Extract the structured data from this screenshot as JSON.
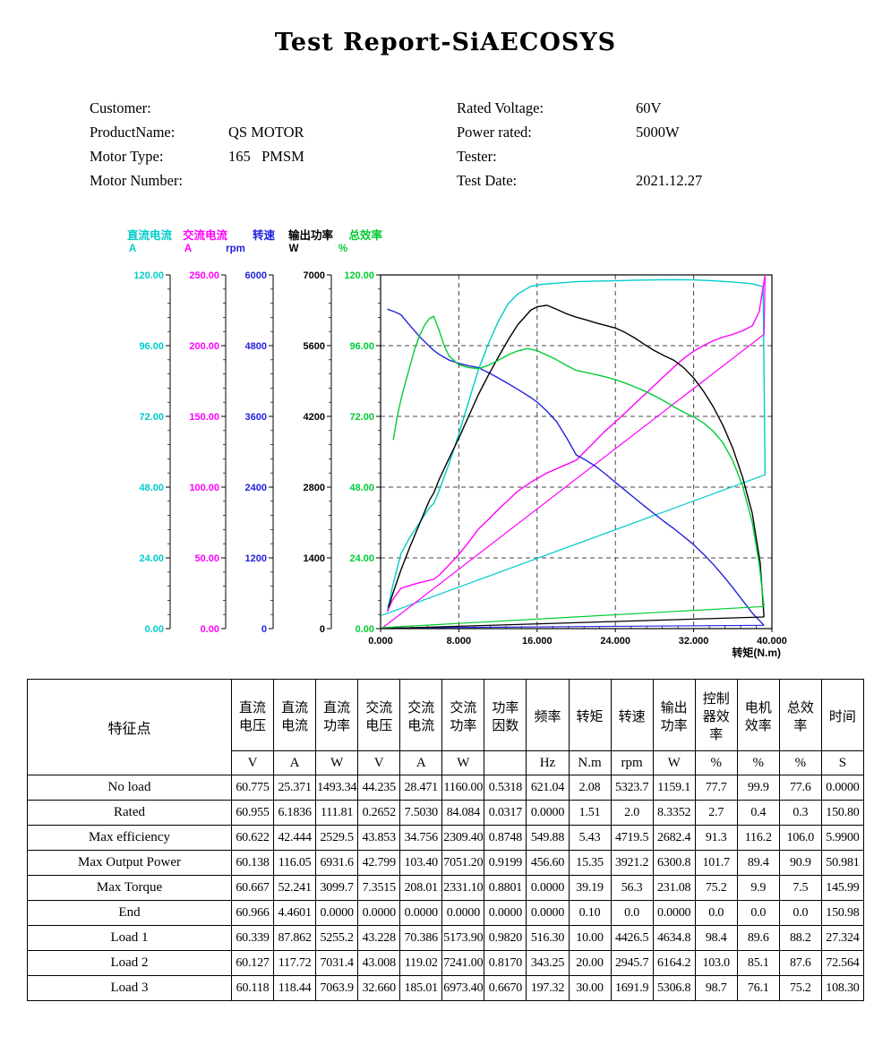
{
  "page": {
    "title": "Test Report-SiAECOSYS"
  },
  "info": {
    "rows": [
      {
        "l_label": "Customer:",
        "l_value": "",
        "r_label": "Rated Voltage:",
        "r_value": "60V"
      },
      {
        "l_label": "ProductName:",
        "l_value": "QS MOTOR",
        "r_label": "Power rated:",
        "r_value": "5000W"
      },
      {
        "l_label": "Motor Type:",
        "l_value": "165   PMSM",
        "r_label": "Tester:",
        "r_value": ""
      },
      {
        "l_label": "Motor Number:",
        "l_value": "",
        "r_label": "Test Date:",
        "r_value": "2021.12.27"
      }
    ]
  },
  "chart_data": {
    "type": "line",
    "title": "",
    "x_axis": {
      "label": "转矩(N.m)",
      "min": 0,
      "max": 40,
      "ticks": [
        "0.000",
        "8.000",
        "16.000",
        "24.000",
        "32.000",
        "40.000"
      ]
    },
    "y_axes": [
      {
        "id": "dc_current",
        "name": "直流电流",
        "unit": "A",
        "color": "#00cccc",
        "max": 120,
        "ticks": [
          "120.00",
          "96.00",
          "72.00",
          "48.00",
          "24.00",
          "0.00"
        ]
      },
      {
        "id": "ac_current",
        "name": "交流电流",
        "unit": "A",
        "color": "#ff00ff",
        "max": 250,
        "ticks": [
          "250.00",
          "200.00",
          "150.00",
          "100.00",
          "50.00",
          "0.00"
        ]
      },
      {
        "id": "speed",
        "name": "转速",
        "unit": "rpm",
        "color": "#2222dd",
        "max": 6000,
        "ticks": [
          "6000",
          "4800",
          "3600",
          "2400",
          "1200",
          "0"
        ]
      },
      {
        "id": "output_power",
        "name": "输出功率",
        "unit": "W",
        "color": "#000000",
        "max": 7000,
        "ticks": [
          "7000",
          "5600",
          "4200",
          "2800",
          "1400",
          "0"
        ]
      },
      {
        "id": "efficiency",
        "name": "总效率",
        "unit": "%",
        "color": "#00cc33",
        "max": 120,
        "ticks": [
          "120.00",
          "96.00",
          "72.00",
          "48.00",
          "24.00",
          "0.00"
        ]
      }
    ],
    "grid": true,
    "legend_position": "top-left",
    "series": [
      {
        "axis": "dc_current",
        "name": "直流电流",
        "color": "#00cccc",
        "points": [
          [
            0.7,
            6
          ],
          [
            1.2,
            14
          ],
          [
            2.08,
            25.4
          ],
          [
            3,
            31
          ],
          [
            4,
            36
          ],
          [
            5,
            41
          ],
          [
            5.43,
            42.4
          ],
          [
            6,
            47
          ],
          [
            7,
            56
          ],
          [
            8,
            66
          ],
          [
            9,
            77
          ],
          [
            10,
            87.9
          ],
          [
            11,
            96.5
          ],
          [
            12,
            104
          ],
          [
            13,
            110
          ],
          [
            14,
            113.5
          ],
          [
            15.35,
            116.1
          ],
          [
            16.5,
            116.8
          ],
          [
            18,
            117.2
          ],
          [
            20,
            117.7
          ],
          [
            22,
            117.9
          ],
          [
            24,
            118
          ],
          [
            26,
            118.2
          ],
          [
            28,
            118.3
          ],
          [
            30,
            118.4
          ],
          [
            32,
            118.3
          ],
          [
            34,
            118
          ],
          [
            36,
            117.6
          ],
          [
            38,
            117
          ],
          [
            39.1,
            116
          ],
          [
            39.3,
            52.2
          ]
        ],
        "return_points": [
          [
            39.3,
            52.2
          ],
          [
            0.1,
            4.46
          ]
        ]
      },
      {
        "axis": "ac_current",
        "name": "交流电流",
        "color": "#ff00ff",
        "points": [
          [
            0.7,
            12
          ],
          [
            1.2,
            20
          ],
          [
            2.08,
            28.5
          ],
          [
            3,
            30.5
          ],
          [
            4,
            32.5
          ],
          [
            5.43,
            34.8
          ],
          [
            6,
            38
          ],
          [
            7,
            45
          ],
          [
            8,
            52.5
          ],
          [
            9,
            61
          ],
          [
            10,
            70.4
          ],
          [
            11,
            77
          ],
          [
            12,
            84
          ],
          [
            13,
            90.5
          ],
          [
            14,
            97
          ],
          [
            15.35,
            103.4
          ],
          [
            16,
            106
          ],
          [
            17,
            110
          ],
          [
            18,
            113
          ],
          [
            19,
            116
          ],
          [
            20,
            119
          ],
          [
            21,
            126
          ],
          [
            22,
            133
          ],
          [
            23,
            140
          ],
          [
            24,
            146
          ],
          [
            25,
            152.5
          ],
          [
            26,
            159
          ],
          [
            27,
            165.5
          ],
          [
            28,
            172
          ],
          [
            29,
            178.5
          ],
          [
            30,
            185
          ],
          [
            31,
            191
          ],
          [
            32,
            196
          ],
          [
            33,
            200
          ],
          [
            34,
            203.5
          ],
          [
            35,
            206
          ],
          [
            36,
            208
          ],
          [
            37,
            210.5
          ],
          [
            38,
            214
          ],
          [
            38.7,
            224
          ],
          [
            39.3,
            250
          ]
        ],
        "return_points": [
          [
            39.3,
            250
          ],
          [
            39.19,
            208
          ],
          [
            0.1,
            0
          ]
        ]
      },
      {
        "axis": "speed",
        "name": "转速",
        "color": "#2222dd",
        "points": [
          [
            0.7,
            5420
          ],
          [
            1.5,
            5370
          ],
          [
            2.08,
            5324
          ],
          [
            3,
            5140
          ],
          [
            4,
            4950
          ],
          [
            5,
            4790
          ],
          [
            5.43,
            4719
          ],
          [
            6,
            4650
          ],
          [
            7,
            4555
          ],
          [
            8,
            4500
          ],
          [
            9,
            4460
          ],
          [
            10,
            4426
          ],
          [
            11,
            4345
          ],
          [
            12,
            4255
          ],
          [
            13,
            4160
          ],
          [
            14,
            4060
          ],
          [
            15.35,
            3921
          ],
          [
            16,
            3845
          ],
          [
            17,
            3690
          ],
          [
            18,
            3510
          ],
          [
            19,
            3240
          ],
          [
            20,
            2946
          ],
          [
            21,
            2855
          ],
          [
            22,
            2750
          ],
          [
            23,
            2620
          ],
          [
            24,
            2480
          ],
          [
            25,
            2345
          ],
          [
            26,
            2210
          ],
          [
            27,
            2075
          ],
          [
            28,
            1945
          ],
          [
            29,
            1815
          ],
          [
            30,
            1692
          ],
          [
            31,
            1560
          ],
          [
            32,
            1425
          ],
          [
            33,
            1265
          ],
          [
            34,
            1090
          ],
          [
            35,
            900
          ],
          [
            36,
            695
          ],
          [
            37,
            480
          ],
          [
            38,
            265
          ],
          [
            39.19,
            56
          ]
        ],
        "return_points": [
          [
            39.19,
            56
          ],
          [
            0.1,
            10
          ]
        ]
      },
      {
        "axis": "output_power",
        "name": "输出功率",
        "color": "#000000",
        "points": [
          [
            0.8,
            420
          ],
          [
            1.3,
            720
          ],
          [
            2.08,
            1159
          ],
          [
            3,
            1620
          ],
          [
            4,
            2080
          ],
          [
            5,
            2540
          ],
          [
            5.43,
            2682
          ],
          [
            6,
            2960
          ],
          [
            7,
            3370
          ],
          [
            8,
            3770
          ],
          [
            9,
            4200
          ],
          [
            10,
            4635
          ],
          [
            11,
            5010
          ],
          [
            12,
            5360
          ],
          [
            13,
            5700
          ],
          [
            14,
            6010
          ],
          [
            15.35,
            6301
          ],
          [
            16,
            6370
          ],
          [
            17,
            6400
          ],
          [
            18,
            6320
          ],
          [
            19,
            6230
          ],
          [
            20,
            6164
          ],
          [
            21,
            6110
          ],
          [
            22,
            6050
          ],
          [
            23,
            6000
          ],
          [
            24,
            5950
          ],
          [
            25,
            5860
          ],
          [
            26,
            5750
          ],
          [
            27,
            5620
          ],
          [
            28,
            5500
          ],
          [
            29,
            5400
          ],
          [
            30,
            5307
          ],
          [
            31,
            5160
          ],
          [
            32,
            4960
          ],
          [
            33,
            4700
          ],
          [
            34,
            4390
          ],
          [
            35,
            4020
          ],
          [
            36,
            3570
          ],
          [
            37,
            3000
          ],
          [
            38,
            2280
          ],
          [
            38.8,
            1300
          ],
          [
            39.19,
            231
          ]
        ],
        "return_points": [
          [
            39.19,
            231
          ],
          [
            0.1,
            0
          ]
        ]
      },
      {
        "axis": "efficiency",
        "name": "总效率",
        "color": "#00cc33",
        "points": [
          [
            1.3,
            64
          ],
          [
            1.7,
            72
          ],
          [
            2.08,
            77.6
          ],
          [
            2.5,
            83
          ],
          [
            3,
            89
          ],
          [
            3.5,
            95
          ],
          [
            4,
            99.5
          ],
          [
            4.5,
            103
          ],
          [
            5,
            105.2
          ],
          [
            5.43,
            106
          ],
          [
            6,
            101
          ],
          [
            6.5,
            96
          ],
          [
            7,
            92.5
          ],
          [
            8,
            89.5
          ],
          [
            9,
            88.6
          ],
          [
            10,
            88.2
          ],
          [
            11,
            89.3
          ],
          [
            12,
            91
          ],
          [
            13,
            92.8
          ],
          [
            14,
            94.2
          ],
          [
            15,
            95
          ],
          [
            16,
            94.3
          ],
          [
            17,
            92.8
          ],
          [
            18,
            91.2
          ],
          [
            19,
            89.3
          ],
          [
            20,
            87.6
          ],
          [
            21,
            86.9
          ],
          [
            22,
            86.2
          ],
          [
            23,
            85.4
          ],
          [
            24,
            84.5
          ],
          [
            25,
            83.3
          ],
          [
            26,
            82
          ],
          [
            27,
            80.6
          ],
          [
            28,
            79
          ],
          [
            29,
            77.2
          ],
          [
            30,
            75.2
          ],
          [
            31,
            73.4
          ],
          [
            32,
            71.8
          ],
          [
            33,
            69.8
          ],
          [
            34,
            67
          ],
          [
            35,
            63
          ],
          [
            36,
            57
          ],
          [
            37,
            48.5
          ],
          [
            38,
            36
          ],
          [
            38.7,
            22
          ],
          [
            39.19,
            7.5
          ]
        ],
        "return_points": [
          [
            39.19,
            7.5
          ],
          [
            0.1,
            0.3
          ]
        ]
      }
    ]
  },
  "table": {
    "corner_header": "特征点",
    "columns": [
      {
        "name": "直流电压",
        "unit": "V"
      },
      {
        "name": "直流电流",
        "unit": "A"
      },
      {
        "name": "直流功率",
        "unit": "W"
      },
      {
        "name": "交流电压",
        "unit": "V"
      },
      {
        "name": "交流电流",
        "unit": "A"
      },
      {
        "name": "交流功率",
        "unit": "W"
      },
      {
        "name": "功率因数",
        "unit": ""
      },
      {
        "name": "频率",
        "unit": "Hz"
      },
      {
        "name": "转矩",
        "unit": "N.m"
      },
      {
        "name": "转速",
        "unit": "rpm"
      },
      {
        "name": "输出功率",
        "unit": "W"
      },
      {
        "name": "控制器效率",
        "unit": "%"
      },
      {
        "name": "电机效率",
        "unit": "%"
      },
      {
        "name": "总效率",
        "unit": "%"
      },
      {
        "name": "时间",
        "unit": "S"
      }
    ],
    "rows": [
      {
        "label": "No load",
        "values": [
          "60.775",
          "25.371",
          "1493.34",
          "44.235",
          "28.471",
          "1160.00",
          "0.5318",
          "621.04",
          "2.08",
          "5323.7",
          "1159.1",
          "77.7",
          "99.9",
          "77.6",
          "0.0000"
        ]
      },
      {
        "label": "Rated",
        "values": [
          "60.955",
          "6.1836",
          "111.81",
          "0.2652",
          "7.5030",
          "84.084",
          "0.0317",
          "0.0000",
          "1.51",
          "2.0",
          "8.3352",
          "2.7",
          "0.4",
          "0.3",
          "150.80"
        ]
      },
      {
        "label": "Max efficiency",
        "values": [
          "60.622",
          "42.444",
          "2529.5",
          "43.853",
          "34.756",
          "2309.40",
          "0.8748",
          "549.88",
          "5.43",
          "4719.5",
          "2682.4",
          "91.3",
          "116.2",
          "106.0",
          "5.9900"
        ]
      },
      {
        "label": "Max Output Power",
        "values": [
          "60.138",
          "116.05",
          "6931.6",
          "42.799",
          "103.40",
          "7051.20",
          "0.9199",
          "456.60",
          "15.35",
          "3921.2",
          "6300.8",
          "101.7",
          "89.4",
          "90.9",
          "50.981"
        ]
      },
      {
        "label": "Max Torque",
        "values": [
          "60.667",
          "52.241",
          "3099.7",
          "7.3515",
          "208.01",
          "2331.10",
          "0.8801",
          "0.0000",
          "39.19",
          "56.3",
          "231.08",
          "75.2",
          "9.9",
          "7.5",
          "145.99"
        ]
      },
      {
        "label": "End",
        "values": [
          "60.966",
          "4.4601",
          "0.0000",
          "0.0000",
          "0.0000",
          "0.0000",
          "0.0000",
          "0.0000",
          "0.10",
          "0.0",
          "0.0000",
          "0.0",
          "0.0",
          "0.0",
          "150.98"
        ]
      },
      {
        "label": "Load 1",
        "values": [
          "60.339",
          "87.862",
          "5255.2",
          "43.228",
          "70.386",
          "5173.90",
          "0.9820",
          "516.30",
          "10.00",
          "4426.5",
          "4634.8",
          "98.4",
          "89.6",
          "88.2",
          "27.324"
        ]
      },
      {
        "label": "Load 2",
        "values": [
          "60.127",
          "117.72",
          "7031.4",
          "43.008",
          "119.02",
          "7241.00",
          "0.8170",
          "343.25",
          "20.00",
          "2945.7",
          "6164.2",
          "103.0",
          "85.1",
          "87.6",
          "72.564"
        ]
      },
      {
        "label": "Load 3",
        "values": [
          "60.118",
          "118.44",
          "7063.9",
          "32.660",
          "185.01",
          "6973.40",
          "0.6670",
          "197.32",
          "30.00",
          "1691.9",
          "5306.8",
          "98.7",
          "76.1",
          "75.2",
          "108.30"
        ]
      }
    ]
  }
}
